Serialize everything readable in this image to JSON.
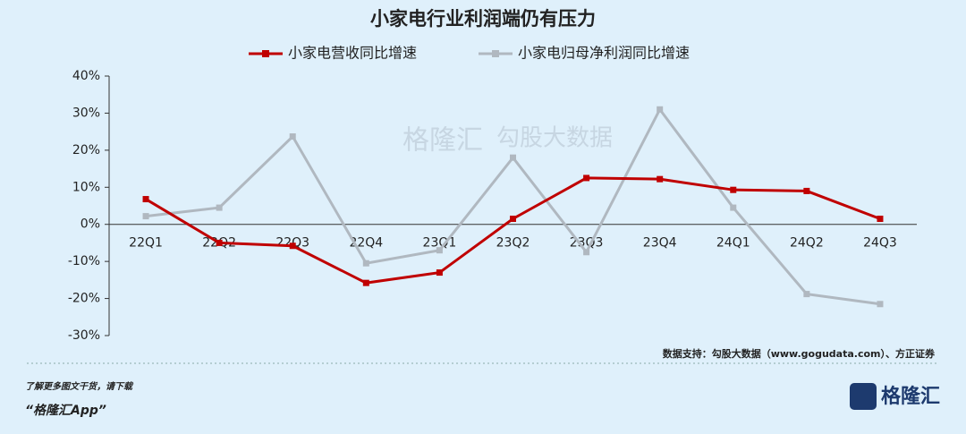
{
  "chart_data": {
    "type": "line",
    "title": "小家电行业利润端仍有压力",
    "categories": [
      "22Q1",
      "22Q2",
      "22Q3",
      "22Q4",
      "23Q1",
      "23Q2",
      "23Q3",
      "23Q4",
      "24Q1",
      "24Q2",
      "24Q3"
    ],
    "series": [
      {
        "name": "小家电营收同比增速",
        "color": "#c00000",
        "values": [
          6.8,
          -5,
          -5.8,
          -15.8,
          -13,
          1.5,
          12.5,
          12.2,
          9.3,
          9,
          1.5
        ]
      },
      {
        "name": "小家电归母净利润同比增速",
        "color": "#b0b8c0",
        "values": [
          2.2,
          4.5,
          23.7,
          -10.5,
          -7,
          18,
          -7.5,
          31,
          4.5,
          -18.8,
          -21.5
        ]
      }
    ],
    "ylim": [
      -30,
      40
    ],
    "yticks": [
      {
        "value": -30,
        "label": "-30%"
      },
      {
        "value": -20,
        "label": "-20%"
      },
      {
        "value": -10,
        "label": "-10%"
      },
      {
        "value": 0,
        "label": "0%"
      },
      {
        "value": 10,
        "label": "10%"
      },
      {
        "value": 20,
        "label": "20%"
      },
      {
        "value": 30,
        "label": "30%"
      },
      {
        "value": 40,
        "label": "40%"
      }
    ],
    "legend": "top",
    "source": "数据支持：勾股大数据（www.gogudata.com）、方正证券",
    "footer_text": "了解更多图文干货，请下载",
    "footer_app": "“格隆汇App”",
    "watermark": [
      "格隆汇",
      "勾股大数据"
    ],
    "logo": "格隆汇"
  }
}
